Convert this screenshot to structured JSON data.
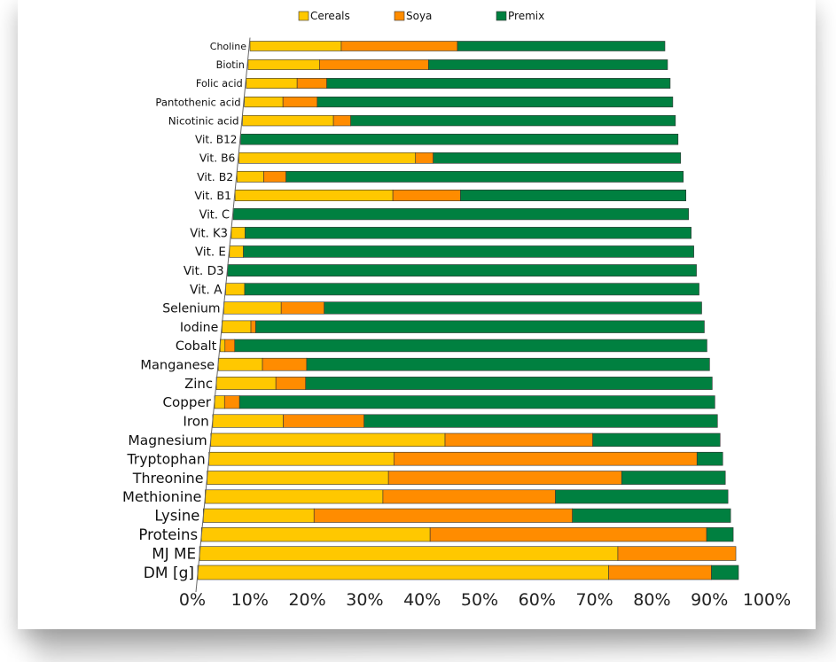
{
  "chart_data": {
    "type": "bar",
    "orientation": "horizontal",
    "stacked": true,
    "series": [
      {
        "name": "Cereals",
        "color": "#ffc800",
        "values": [
          22,
          17,
          12,
          9,
          21,
          0,
          40,
          6,
          35,
          0,
          3,
          3,
          0,
          4,
          12,
          6,
          1,
          9,
          12,
          2,
          14,
          46,
          36,
          35,
          34,
          21,
          43,
          78,
          76
        ]
      },
      {
        "name": "Soya",
        "color": "#ff8c00",
        "values": [
          28,
          26,
          7,
          8,
          4,
          0,
          4,
          5,
          15,
          0,
          0,
          0,
          0,
          0,
          9,
          1,
          2,
          9,
          6,
          3,
          16,
          29,
          59,
          45,
          33,
          49,
          52,
          22,
          19
        ]
      },
      {
        "name": "Premix",
        "color": "#008040",
        "values": [
          50,
          57,
          81,
          83,
          75,
          100,
          56,
          89,
          50,
          100,
          97,
          97,
          100,
          96,
          79,
          93,
          97,
          82,
          82,
          95,
          70,
          25,
          5,
          20,
          33,
          30,
          5,
          0,
          5
        ]
      }
    ],
    "categories": [
      "Choline",
      "Biotin",
      "Folic acid",
      "Pantothenic acid",
      "Nicotinic acid",
      "Vit. B12",
      "Vit. B6",
      "Vit. B2",
      "Vit. B1",
      "Vit. C",
      "Vit. K3",
      "Vit. E",
      "Vit. D3",
      "Vit. A",
      "Selenium",
      "Iodine",
      "Cobalt",
      "Manganese",
      "Zinc",
      "Copper",
      "Iron",
      "Magnesium",
      "Tryptophan",
      "Threonine",
      "Methionine",
      "Lysine",
      "Proteins",
      "MJ ME",
      "DM [g]"
    ],
    "x_ticks": [
      "0%",
      "10%",
      "20%",
      "30%",
      "40%",
      "50%",
      "60%",
      "70%",
      "80%",
      "90%",
      "100%"
    ],
    "xlim": [
      0,
      100
    ],
    "legend_position": "top",
    "grid": false
  }
}
